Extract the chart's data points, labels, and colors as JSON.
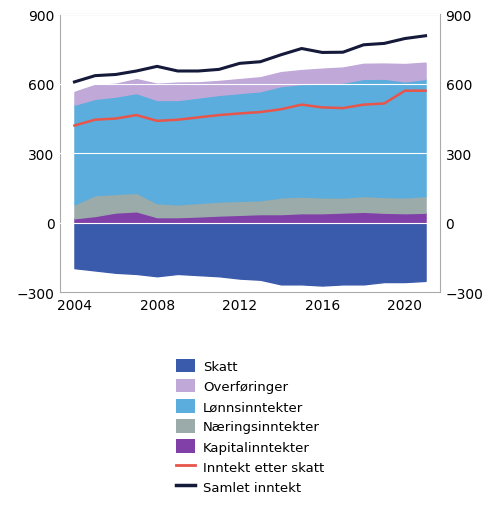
{
  "years": [
    2004,
    2005,
    2006,
    2007,
    2008,
    2009,
    2010,
    2011,
    2012,
    2013,
    2014,
    2015,
    2016,
    2017,
    2018,
    2019,
    2020,
    2021
  ],
  "skatt": [
    -195,
    -205,
    -215,
    -220,
    -230,
    -220,
    -225,
    -230,
    -240,
    -245,
    -265,
    -265,
    -270,
    -265,
    -265,
    -255,
    -255,
    -250
  ],
  "kapitalinntekter": [
    20,
    30,
    45,
    50,
    25,
    25,
    28,
    32,
    35,
    38,
    38,
    42,
    42,
    45,
    48,
    44,
    42,
    44
  ],
  "naeringsinntekter": [
    60,
    90,
    80,
    80,
    60,
    55,
    58,
    60,
    60,
    60,
    72,
    72,
    68,
    65,
    68,
    68,
    68,
    72
  ],
  "lonnsinntekter": [
    430,
    415,
    420,
    430,
    445,
    450,
    455,
    460,
    465,
    470,
    480,
    485,
    490,
    495,
    505,
    510,
    500,
    505
  ],
  "overforinger": [
    55,
    60,
    55,
    60,
    70,
    75,
    65,
    60,
    60,
    60,
    60,
    60,
    65,
    65,
    65,
    65,
    75,
    70
  ],
  "inntekt_etter_skatt": [
    420,
    445,
    450,
    465,
    440,
    445,
    455,
    465,
    472,
    478,
    490,
    510,
    498,
    495,
    510,
    515,
    570,
    570
  ],
  "samlet_inntekt": [
    608,
    635,
    640,
    655,
    675,
    655,
    655,
    662,
    688,
    695,
    725,
    752,
    735,
    736,
    768,
    774,
    795,
    807
  ],
  "colors": {
    "skatt": "#3a5aab",
    "overforinger": "#c0a8d8",
    "lonnsinntekter": "#5aaddd",
    "naeringsinntekter": "#9aabaa",
    "kapitalinntekter": "#8040a8",
    "inntekt_etter_skatt": "#e8554a",
    "samlet_inntekt": "#151a3a"
  },
  "ylim": [
    -300,
    900
  ],
  "yticks": [
    -300,
    0,
    300,
    600,
    900
  ],
  "xlim": [
    2003.3,
    2021.7
  ],
  "xticks": [
    2004,
    2008,
    2012,
    2016,
    2020
  ],
  "legend_labels": [
    "Skatt",
    "Overføringer",
    "Lønnsinntekter",
    "Næringsinntekter",
    "Kapitalinntekter",
    "Inntekt etter skatt",
    "Samlet inntekt"
  ],
  "figsize": [
    5.0,
    5.06
  ],
  "dpi": 100
}
